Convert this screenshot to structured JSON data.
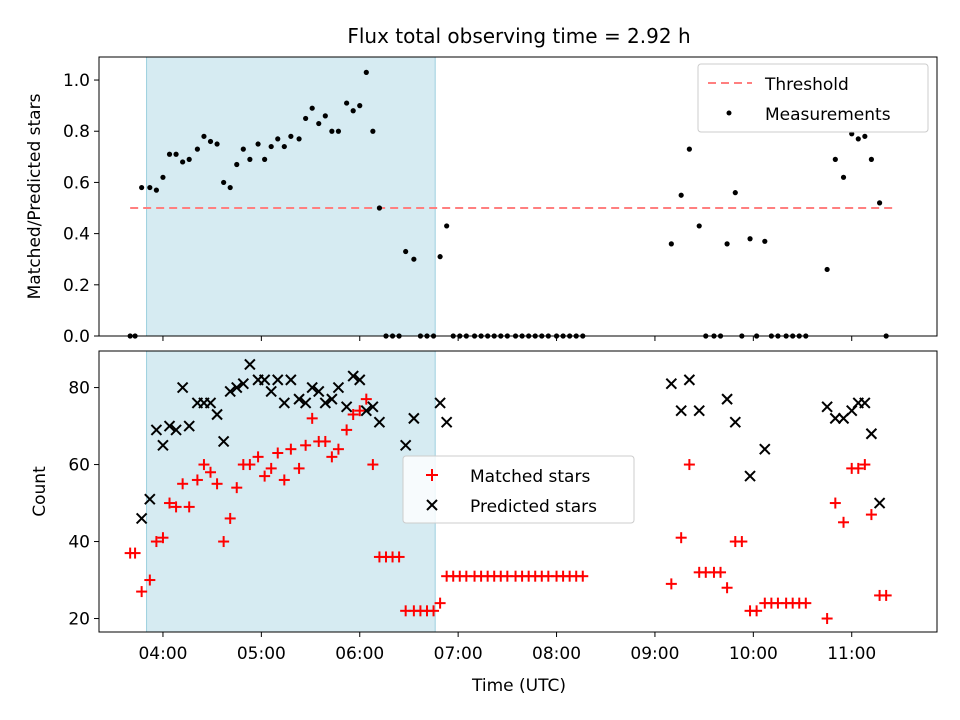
{
  "title": "Flux total observing time = 2.92 h",
  "chart_data": [
    {
      "type": "scatter",
      "ylabel": "Matched/Predicted stars",
      "ylim": [
        0,
        1.09
      ],
      "xlim": [
        "03:21",
        "11:52"
      ],
      "yticks": [
        0.0,
        0.2,
        0.4,
        0.6,
        0.8,
        1.0
      ],
      "ytick_labels": [
        "0.0",
        "0.2",
        "0.4",
        "0.6",
        "0.8",
        "1.0"
      ],
      "shaded_span": [
        "03:50",
        "06:46"
      ],
      "shaded_color": "#add8e6",
      "threshold": {
        "value": 0.5,
        "x_range": [
          "03:40",
          "11:25"
        ],
        "color": "#ff7f7f"
      },
      "legend_position": "top-right",
      "legend": [
        "Threshold",
        "Measurements"
      ],
      "series": [
        {
          "name": "Measurements",
          "color": "#000000",
          "points": [
            [
              "03:40",
              0.0
            ],
            [
              "03:43",
              0.0
            ],
            [
              "03:47",
              0.58
            ],
            [
              "03:52",
              0.58
            ],
            [
              "03:56",
              0.57
            ],
            [
              "04:00",
              0.62
            ],
            [
              "04:04",
              0.71
            ],
            [
              "04:08",
              0.71
            ],
            [
              "04:12",
              0.68
            ],
            [
              "04:16",
              0.69
            ],
            [
              "04:21",
              0.73
            ],
            [
              "04:25",
              0.78
            ],
            [
              "04:29",
              0.76
            ],
            [
              "04:33",
              0.75
            ],
            [
              "04:37",
              0.6
            ],
            [
              "04:41",
              0.58
            ],
            [
              "04:45",
              0.67
            ],
            [
              "04:49",
              0.73
            ],
            [
              "04:53",
              0.69
            ],
            [
              "04:58",
              0.75
            ],
            [
              "05:02",
              0.69
            ],
            [
              "05:06",
              0.74
            ],
            [
              "05:10",
              0.77
            ],
            [
              "05:14",
              0.74
            ],
            [
              "05:18",
              0.78
            ],
            [
              "05:23",
              0.77
            ],
            [
              "05:27",
              0.85
            ],
            [
              "05:31",
              0.89
            ],
            [
              "05:35",
              0.83
            ],
            [
              "05:39",
              0.86
            ],
            [
              "05:43",
              0.8
            ],
            [
              "05:47",
              0.8
            ],
            [
              "05:52",
              0.91
            ],
            [
              "05:56",
              0.88
            ],
            [
              "06:00",
              0.9
            ],
            [
              "06:04",
              1.03
            ],
            [
              "06:08",
              0.8
            ],
            [
              "06:12",
              0.5
            ],
            [
              "06:16",
              0.0
            ],
            [
              "06:20",
              0.0
            ],
            [
              "06:24",
              0.0
            ],
            [
              "06:28",
              0.33
            ],
            [
              "06:33",
              0.3
            ],
            [
              "06:37",
              0.0
            ],
            [
              "06:41",
              0.0
            ],
            [
              "06:45",
              0.0
            ],
            [
              "06:49",
              0.31
            ],
            [
              "06:53",
              0.43
            ],
            [
              "06:57",
              0.0
            ],
            [
              "07:01",
              0.0
            ],
            [
              "07:05",
              0.0
            ],
            [
              "07:10",
              0.0
            ],
            [
              "07:14",
              0.0
            ],
            [
              "07:18",
              0.0
            ],
            [
              "07:22",
              0.0
            ],
            [
              "07:26",
              0.0
            ],
            [
              "07:30",
              0.0
            ],
            [
              "07:35",
              0.0
            ],
            [
              "07:39",
              0.0
            ],
            [
              "07:43",
              0.0
            ],
            [
              "07:47",
              0.0
            ],
            [
              "07:51",
              0.0
            ],
            [
              "07:55",
              0.0
            ],
            [
              "08:00",
              0.0
            ],
            [
              "08:04",
              0.0
            ],
            [
              "08:08",
              0.0
            ],
            [
              "08:12",
              0.0
            ],
            [
              "08:16",
              0.0
            ],
            [
              "09:10",
              0.36
            ],
            [
              "09:16",
              0.55
            ],
            [
              "09:21",
              0.73
            ],
            [
              "09:27",
              0.43
            ],
            [
              "09:31",
              0.0
            ],
            [
              "09:36",
              0.0
            ],
            [
              "09:40",
              0.0
            ],
            [
              "09:44",
              0.36
            ],
            [
              "09:49",
              0.56
            ],
            [
              "09:53",
              0.0
            ],
            [
              "09:58",
              0.38
            ],
            [
              "10:02",
              0.0
            ],
            [
              "10:07",
              0.37
            ],
            [
              "10:11",
              0.0
            ],
            [
              "10:15",
              0.0
            ],
            [
              "10:20",
              0.0
            ],
            [
              "10:24",
              0.0
            ],
            [
              "10:28",
              0.0
            ],
            [
              "10:32",
              0.0
            ],
            [
              "10:45",
              0.26
            ],
            [
              "10:50",
              0.69
            ],
            [
              "10:55",
              0.62
            ],
            [
              "11:00",
              0.79
            ],
            [
              "11:04",
              0.77
            ],
            [
              "11:08",
              0.78
            ],
            [
              "11:12",
              0.69
            ],
            [
              "11:17",
              0.52
            ],
            [
              "11:21",
              0.0
            ]
          ]
        }
      ]
    },
    {
      "type": "scatter",
      "ylabel": "Count",
      "xlabel": "Time (UTC)",
      "ylim": [
        16.5,
        89.5
      ],
      "xlim": [
        "03:21",
        "11:52"
      ],
      "yticks": [
        20,
        40,
        60,
        80
      ],
      "ytick_labels": [
        "20",
        "40",
        "60",
        "80"
      ],
      "xticks": [
        "04:00",
        "05:00",
        "06:00",
        "07:00",
        "08:00",
        "09:00",
        "10:00",
        "11:00"
      ],
      "xtick_labels": [
        "04:00",
        "05:00",
        "06:00",
        "07:00",
        "08:00",
        "09:00",
        "10:00",
        "11:00"
      ],
      "shaded_span": [
        "03:50",
        "06:46"
      ],
      "shaded_color": "#add8e6",
      "legend_position": "center",
      "legend": [
        "Matched stars",
        "Predicted stars"
      ],
      "series": [
        {
          "name": "Matched stars",
          "color": "#ff0000",
          "points": [
            [
              "03:40",
              37
            ],
            [
              "03:43",
              37
            ],
            [
              "03:47",
              27
            ],
            [
              "03:52",
              30
            ],
            [
              "03:56",
              40
            ],
            [
              "04:00",
              41
            ],
            [
              "04:04",
              50
            ],
            [
              "04:08",
              49
            ],
            [
              "04:12",
              55
            ],
            [
              "04:16",
              49
            ],
            [
              "04:21",
              56
            ],
            [
              "04:25",
              60
            ],
            [
              "04:29",
              58
            ],
            [
              "04:33",
              55
            ],
            [
              "04:37",
              40
            ],
            [
              "04:41",
              46
            ],
            [
              "04:45",
              54
            ],
            [
              "04:49",
              60
            ],
            [
              "04:53",
              60
            ],
            [
              "04:58",
              62
            ],
            [
              "05:02",
              57
            ],
            [
              "05:06",
              59
            ],
            [
              "05:10",
              63
            ],
            [
              "05:14",
              56
            ],
            [
              "05:18",
              64
            ],
            [
              "05:23",
              59
            ],
            [
              "05:27",
              65
            ],
            [
              "05:31",
              72
            ],
            [
              "05:35",
              66
            ],
            [
              "05:39",
              66
            ],
            [
              "05:43",
              62
            ],
            [
              "05:47",
              64
            ],
            [
              "05:52",
              69
            ],
            [
              "05:56",
              73
            ],
            [
              "06:00",
              74
            ],
            [
              "06:04",
              77
            ],
            [
              "06:08",
              60
            ],
            [
              "06:12",
              36
            ],
            [
              "06:16",
              36
            ],
            [
              "06:20",
              36
            ],
            [
              "06:24",
              36
            ],
            [
              "06:28",
              22
            ],
            [
              "06:33",
              22
            ],
            [
              "06:37",
              22
            ],
            [
              "06:41",
              22
            ],
            [
              "06:45",
              22
            ],
            [
              "06:49",
              24
            ],
            [
              "06:53",
              31
            ],
            [
              "06:57",
              31
            ],
            [
              "07:01",
              31
            ],
            [
              "07:05",
              31
            ],
            [
              "07:10",
              31
            ],
            [
              "07:14",
              31
            ],
            [
              "07:18",
              31
            ],
            [
              "07:22",
              31
            ],
            [
              "07:26",
              31
            ],
            [
              "07:30",
              31
            ],
            [
              "07:35",
              31
            ],
            [
              "07:39",
              31
            ],
            [
              "07:43",
              31
            ],
            [
              "07:47",
              31
            ],
            [
              "07:51",
              31
            ],
            [
              "07:55",
              31
            ],
            [
              "08:00",
              31
            ],
            [
              "08:04",
              31
            ],
            [
              "08:08",
              31
            ],
            [
              "08:12",
              31
            ],
            [
              "08:16",
              31
            ],
            [
              "09:10",
              29
            ],
            [
              "09:16",
              41
            ],
            [
              "09:21",
              60
            ],
            [
              "09:27",
              32
            ],
            [
              "09:31",
              32
            ],
            [
              "09:36",
              32
            ],
            [
              "09:40",
              32
            ],
            [
              "09:44",
              28
            ],
            [
              "09:49",
              40
            ],
            [
              "09:53",
              40
            ],
            [
              "09:58",
              22
            ],
            [
              "10:02",
              22
            ],
            [
              "10:07",
              24
            ],
            [
              "10:11",
              24
            ],
            [
              "10:15",
              24
            ],
            [
              "10:20",
              24
            ],
            [
              "10:24",
              24
            ],
            [
              "10:28",
              24
            ],
            [
              "10:32",
              24
            ],
            [
              "10:45",
              20
            ],
            [
              "10:50",
              50
            ],
            [
              "10:55",
              45
            ],
            [
              "11:00",
              59
            ],
            [
              "11:04",
              59
            ],
            [
              "11:08",
              60
            ],
            [
              "11:12",
              47
            ],
            [
              "11:17",
              26
            ],
            [
              "11:21",
              26
            ]
          ]
        },
        {
          "name": "Predicted stars",
          "color": "#000000",
          "points": [
            [
              "03:47",
              46
            ],
            [
              "03:52",
              51
            ],
            [
              "03:56",
              69
            ],
            [
              "04:00",
              65
            ],
            [
              "04:04",
              70
            ],
            [
              "04:08",
              69
            ],
            [
              "04:12",
              80
            ],
            [
              "04:16",
              70
            ],
            [
              "04:21",
              76
            ],
            [
              "04:25",
              76
            ],
            [
              "04:29",
              76
            ],
            [
              "04:33",
              73
            ],
            [
              "04:37",
              66
            ],
            [
              "04:41",
              79
            ],
            [
              "04:45",
              80
            ],
            [
              "04:49",
              81
            ],
            [
              "04:53",
              86
            ],
            [
              "04:58",
              82
            ],
            [
              "05:02",
              82
            ],
            [
              "05:06",
              79
            ],
            [
              "05:10",
              82
            ],
            [
              "05:14",
              76
            ],
            [
              "05:18",
              82
            ],
            [
              "05:23",
              77
            ],
            [
              "05:27",
              76
            ],
            [
              "05:31",
              80
            ],
            [
              "05:35",
              79
            ],
            [
              "05:39",
              76
            ],
            [
              "05:43",
              77
            ],
            [
              "05:47",
              80
            ],
            [
              "05:52",
              75
            ],
            [
              "05:56",
              83
            ],
            [
              "06:00",
              82
            ],
            [
              "06:04",
              74
            ],
            [
              "06:08",
              75
            ],
            [
              "06:12",
              71
            ],
            [
              "06:28",
              65
            ],
            [
              "06:33",
              72
            ],
            [
              "06:49",
              76
            ],
            [
              "06:53",
              71
            ],
            [
              "09:10",
              81
            ],
            [
              "09:16",
              74
            ],
            [
              "09:21",
              82
            ],
            [
              "09:27",
              74
            ],
            [
              "09:44",
              77
            ],
            [
              "09:49",
              71
            ],
            [
              "09:58",
              57
            ],
            [
              "10:07",
              64
            ],
            [
              "10:45",
              75
            ],
            [
              "10:50",
              72
            ],
            [
              "10:55",
              72
            ],
            [
              "11:00",
              74
            ],
            [
              "11:04",
              76
            ],
            [
              "11:08",
              76
            ],
            [
              "11:12",
              68
            ],
            [
              "11:17",
              50
            ]
          ]
        }
      ]
    }
  ]
}
